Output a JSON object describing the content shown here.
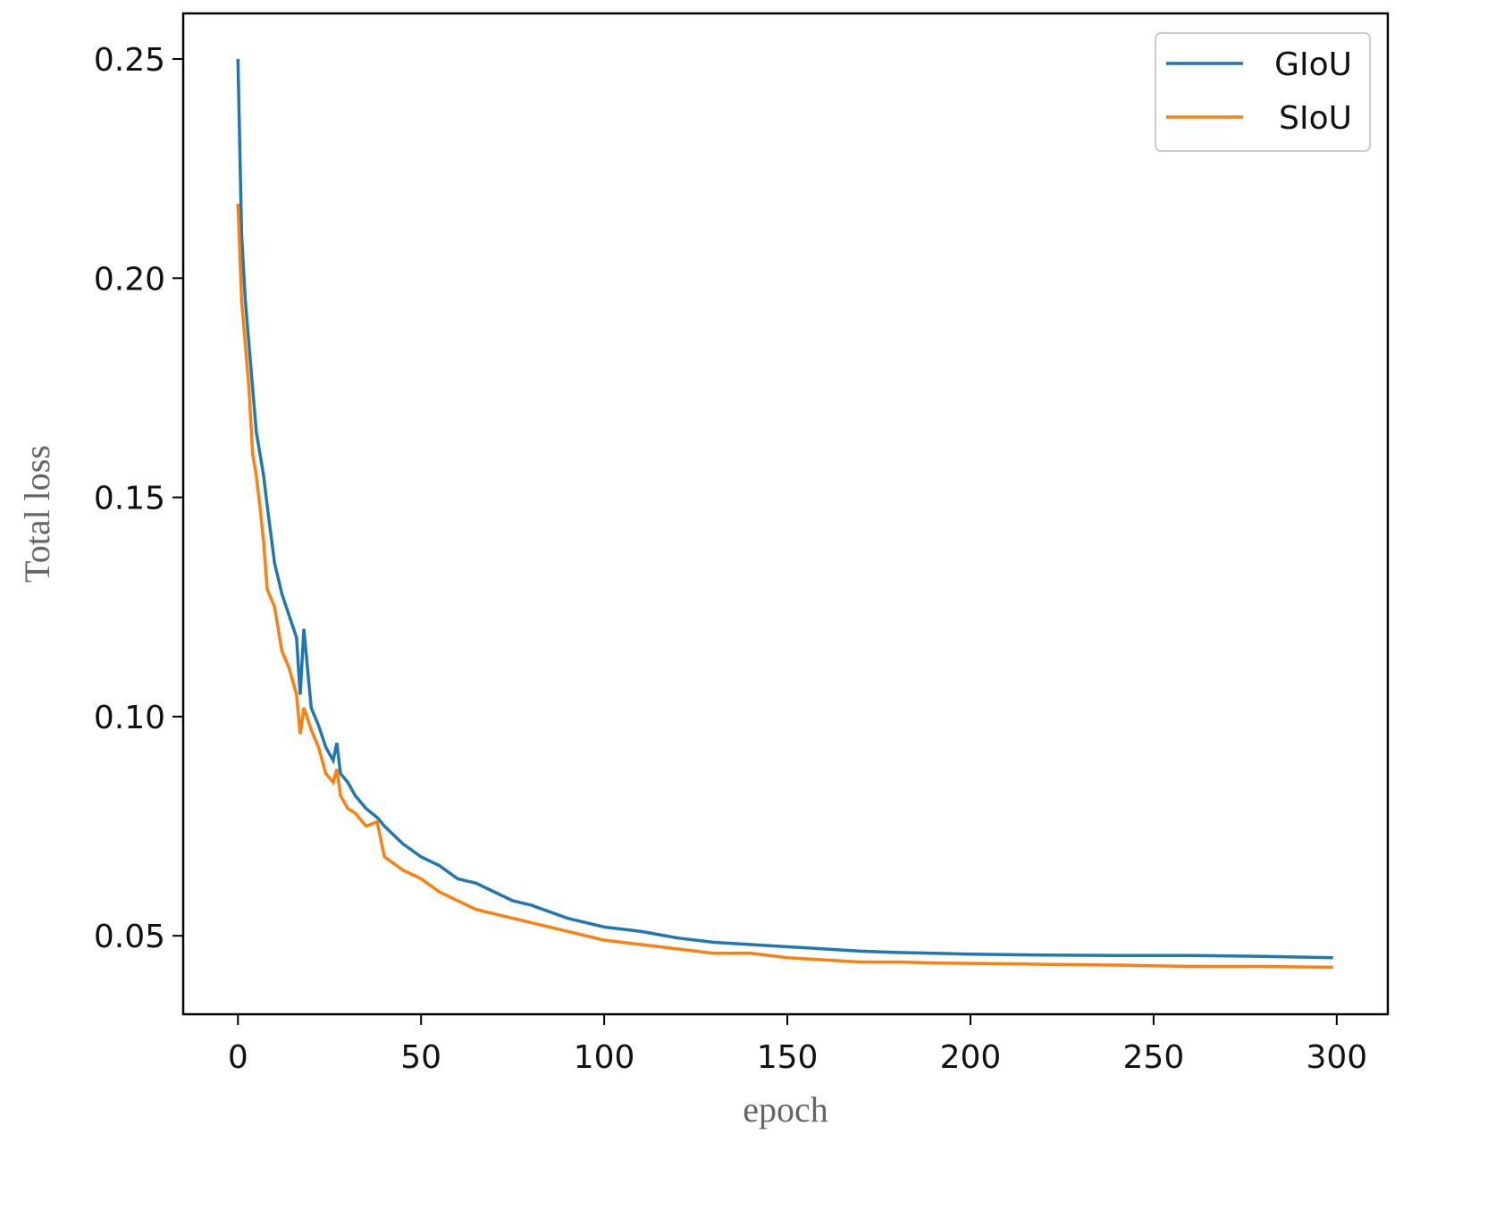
{
  "chart_data": {
    "type": "line",
    "xlabel": "epoch",
    "ylabel": "Total loss",
    "x": [
      0,
      1,
      2,
      3,
      4,
      5,
      6,
      7,
      8,
      10,
      12,
      14,
      16,
      17,
      18,
      20,
      22,
      24,
      26,
      27,
      28,
      30,
      32,
      35,
      38,
      40,
      45,
      50,
      55,
      60,
      65,
      70,
      75,
      80,
      90,
      100,
      110,
      120,
      130,
      140,
      150,
      160,
      170,
      180,
      190,
      200,
      220,
      240,
      260,
      280,
      299
    ],
    "series": [
      {
        "name": "GIoU",
        "color": "#1f77b4",
        "values": [
          0.25,
          0.21,
          0.195,
          0.185,
          0.175,
          0.165,
          0.16,
          0.155,
          0.148,
          0.135,
          0.128,
          0.123,
          0.118,
          0.105,
          0.12,
          0.102,
          0.098,
          0.093,
          0.09,
          0.094,
          0.087,
          0.085,
          0.082,
          0.079,
          0.077,
          0.075,
          0.071,
          0.068,
          0.066,
          0.063,
          0.062,
          0.06,
          0.058,
          0.057,
          0.054,
          0.052,
          0.051,
          0.0495,
          0.0485,
          0.048,
          0.0475,
          0.047,
          0.0465,
          0.0462,
          0.046,
          0.0458,
          0.0456,
          0.0455,
          0.0455,
          0.0453,
          0.045
        ]
      },
      {
        "name": "SIoU",
        "color": "#ff7f0e",
        "values": [
          0.217,
          0.195,
          0.185,
          0.175,
          0.16,
          0.155,
          0.148,
          0.14,
          0.129,
          0.125,
          0.115,
          0.111,
          0.105,
          0.096,
          0.102,
          0.097,
          0.093,
          0.087,
          0.085,
          0.088,
          0.082,
          0.079,
          0.078,
          0.075,
          0.076,
          0.068,
          0.065,
          0.063,
          0.06,
          0.058,
          0.056,
          0.055,
          0.054,
          0.053,
          0.051,
          0.049,
          0.048,
          0.047,
          0.046,
          0.046,
          0.045,
          0.0445,
          0.044,
          0.044,
          0.0438,
          0.0437,
          0.0435,
          0.0433,
          0.043,
          0.043,
          0.0428
        ]
      }
    ],
    "xlim": [
      -14.95,
      313.95
    ],
    "ylim": [
      0.0321,
      0.2604
    ],
    "xticks": [
      0,
      50,
      100,
      150,
      200,
      250,
      300
    ],
    "yticks": [
      0.05,
      {
        "value": 0.1,
        "label": "0.10"
      },
      0.15,
      {
        "value": 0.2,
        "label": "0.20"
      },
      0.25
    ],
    "grid": false,
    "legend": "upper right"
  }
}
